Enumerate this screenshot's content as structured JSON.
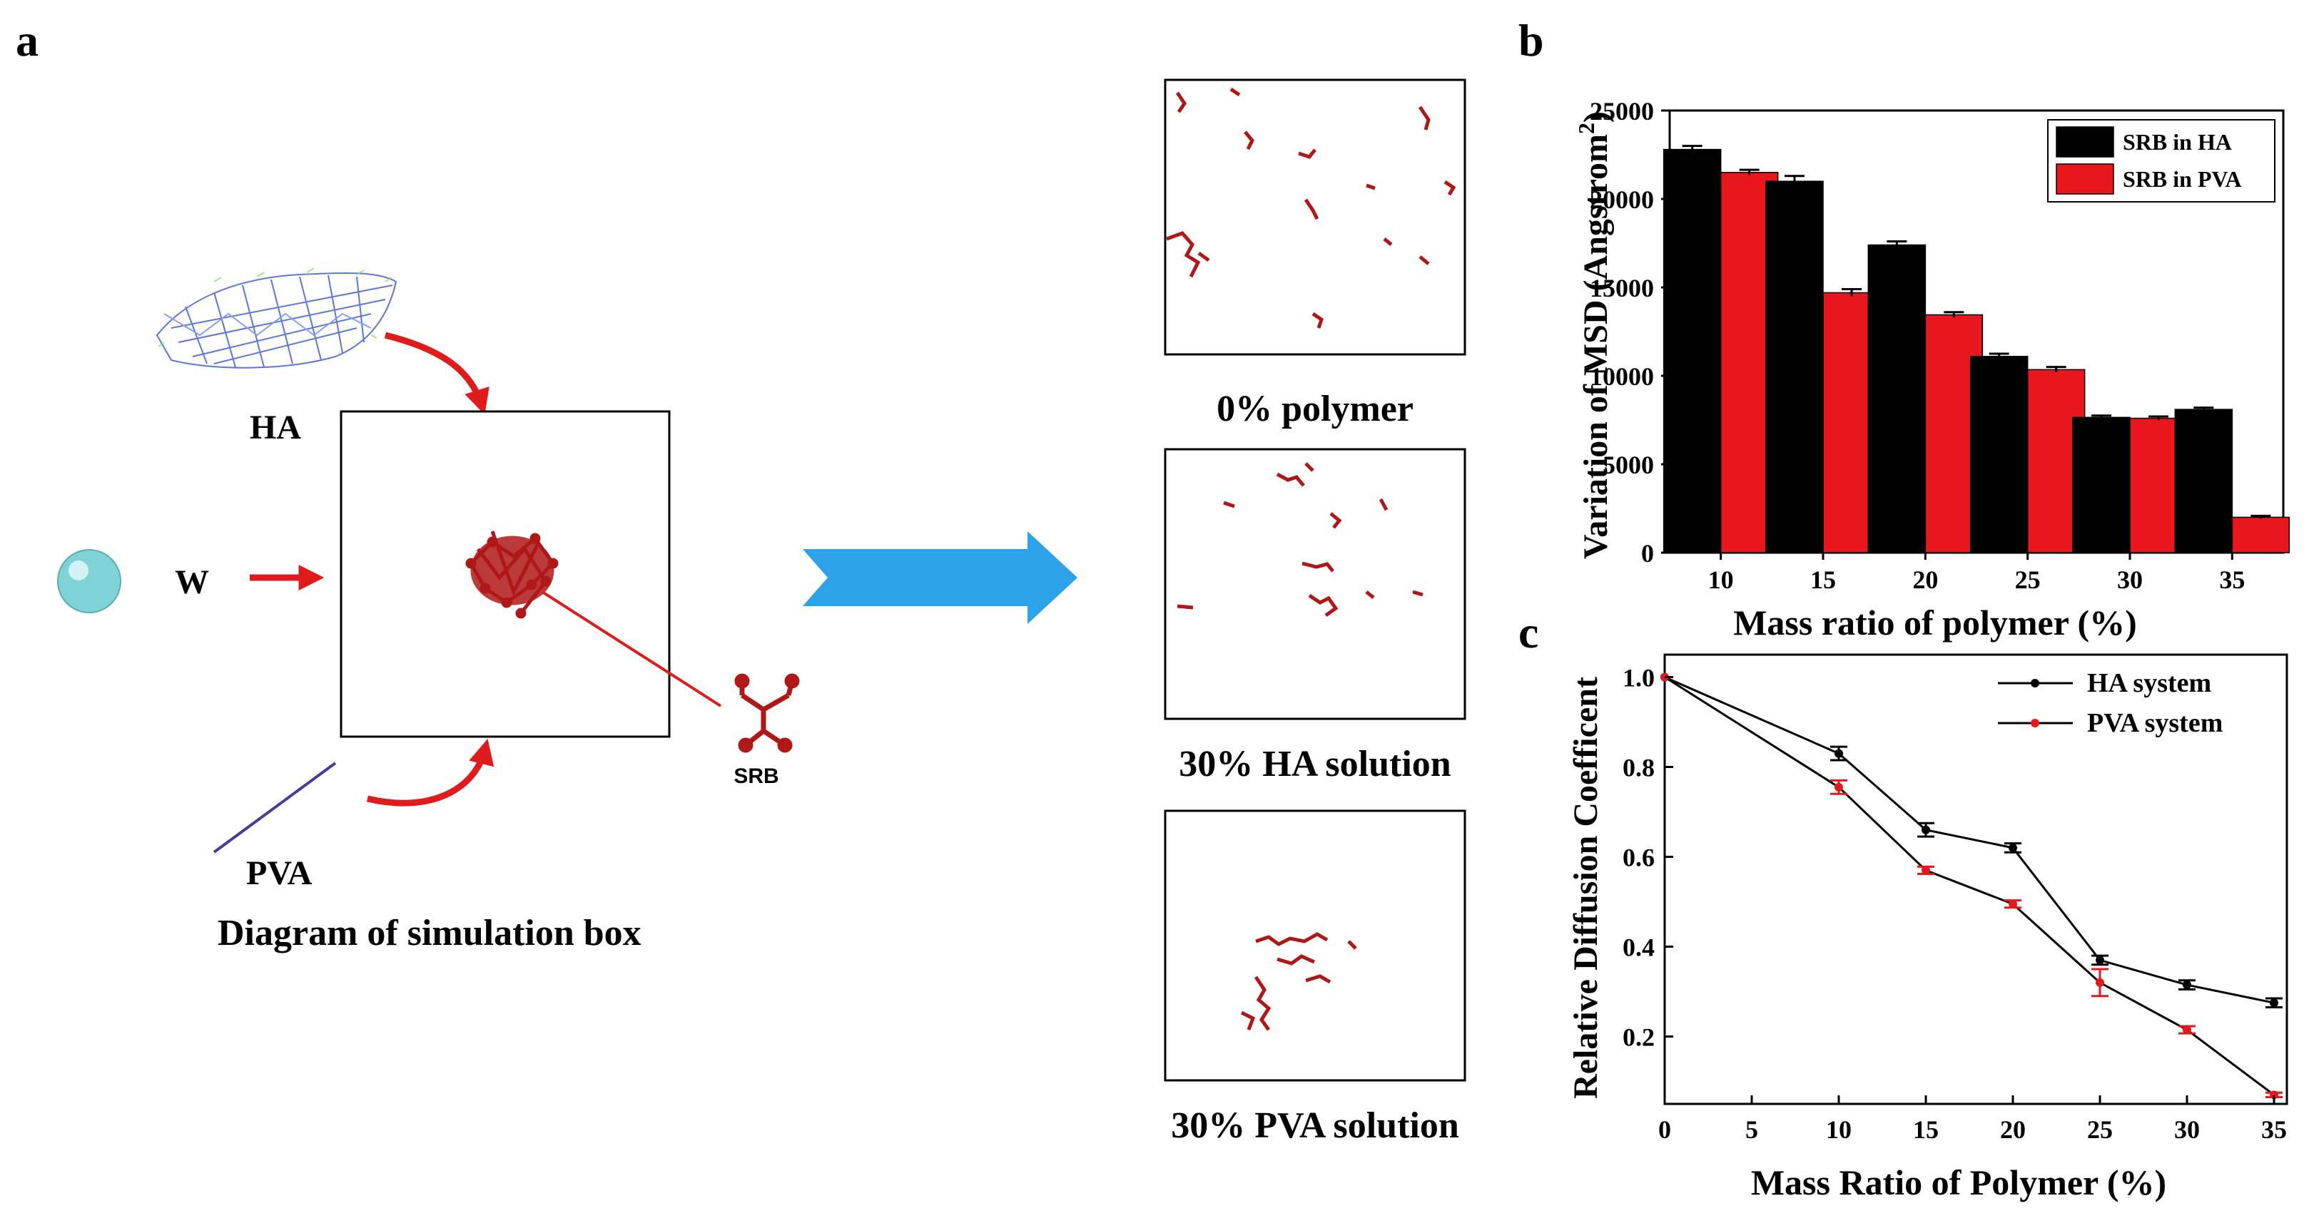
{
  "panel_labels": {
    "a": "a",
    "b": "b",
    "c": "c"
  },
  "panel_a": {
    "ha_label": "HA",
    "w_label": "W",
    "pva_label": "PVA",
    "srb_label": "SRB",
    "caption": "Diagram of simulation box",
    "snapshots": [
      "0% polymer",
      "30% HA solution",
      "30% PVA solution"
    ]
  },
  "colors": {
    "ha_bar": "#000000",
    "pva_bar": "#e8171c",
    "molecule": "#b01818",
    "arrow_blue": "#2ca3e8",
    "arrow_red": "#e01b1b",
    "ha_mesh": "#3d5fd8",
    "water": "#7fd3d6"
  },
  "chart_data": [
    {
      "type": "bar",
      "panel": "b",
      "title": "",
      "xlabel": "Mass ratio of polymer (%)",
      "ylabel": "Variation of MSD (Angstrom",
      "ylabel_sup": "2",
      "ylabel_close": ")",
      "categories": [
        "10",
        "15",
        "20",
        "25",
        "30",
        "35"
      ],
      "series": [
        {
          "name": "SRB in HA",
          "values": [
            22800,
            21000,
            17400,
            11100,
            7650,
            8100
          ],
          "errors": [
            200,
            300,
            200,
            150,
            100,
            100
          ]
        },
        {
          "name": "SRB in PVA",
          "values": [
            21500,
            14700,
            13450,
            10350,
            7600,
            2000
          ],
          "errors": [
            150,
            200,
            150,
            150,
            100,
            80
          ]
        }
      ],
      "ylim": [
        0,
        25000
      ],
      "yticks": [
        "0",
        "5000",
        "10000",
        "15000",
        "20000",
        "25000"
      ],
      "legend_position": "top-right"
    },
    {
      "type": "line",
      "panel": "c",
      "title": "",
      "xlabel": "Mass Ratio of Polymer (%)",
      "ylabel": "Relative Diffusion Coefficent",
      "x": [
        0,
        10,
        15,
        20,
        25,
        30,
        35
      ],
      "series": [
        {
          "name": "HA system",
          "values": [
            1.0,
            0.83,
            0.66,
            0.62,
            0.37,
            0.315,
            0.275
          ],
          "errors": [
            0.0,
            0.015,
            0.015,
            0.01,
            0.01,
            0.01,
            0.01
          ]
        },
        {
          "name": "PVA system",
          "values": [
            1.0,
            0.755,
            0.57,
            0.495,
            0.32,
            0.215,
            0.07
          ],
          "errors": [
            0.0,
            0.015,
            0.008,
            0.008,
            0.03,
            0.008,
            0.005
          ]
        }
      ],
      "xlim": [
        0,
        35
      ],
      "ylim": [
        0.05,
        1.05
      ],
      "xticks": [
        "0",
        "5",
        "10",
        "15",
        "20",
        "25",
        "30",
        "35"
      ],
      "yticks": [
        "0.2",
        "0.4",
        "0.6",
        "0.8",
        "1.0"
      ],
      "legend_position": "top-right"
    }
  ]
}
